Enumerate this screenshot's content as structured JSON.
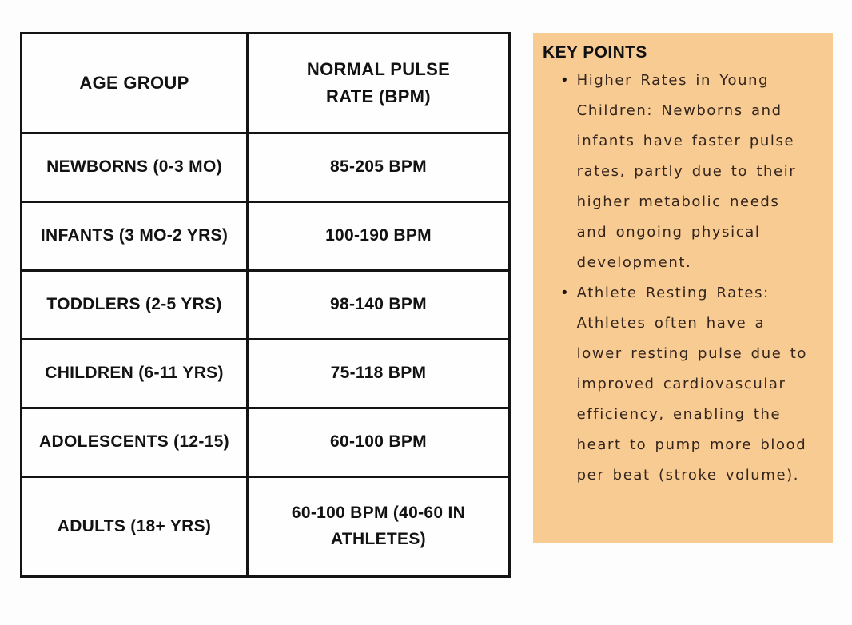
{
  "table": {
    "columns": {
      "age_group": "AGE GROUP",
      "pulse_rate": "NORMAL PULSE RATE (BPM)"
    },
    "rows": [
      {
        "age_group": "NEWBORNS (0-3 MO)",
        "pulse_rate": "85-205 BPM"
      },
      {
        "age_group": "INFANTS (3 MO-2 YRS)",
        "pulse_rate": "100-190 BPM"
      },
      {
        "age_group": "TODDLERS (2-5 YRS)",
        "pulse_rate": "98-140 BPM"
      },
      {
        "age_group": "CHILDREN (6-11 YRS)",
        "pulse_rate": "75-118 BPM"
      },
      {
        "age_group": "ADOLESCENTS (12-15)",
        "pulse_rate": "60-100 BPM"
      },
      {
        "age_group": "ADULTS (18+ YRS)",
        "pulse_rate": "60-100 BPM (40-60 IN ATHLETES)"
      }
    ]
  },
  "key_points": {
    "title": "KEY POINTS",
    "bullet_glyph": "•",
    "bullets": [
      "Higher Rates in Young Children: Newborns and infants have faster pulse rates, partly due to their higher metabolic needs and ongoing physical development.",
      "Athlete Resting Rates: Athletes often have a lower resting pulse due to improved cardiovascular efficiency, enabling the heart to pump more blood per beat (stroke volume)."
    ]
  },
  "colors": {
    "panel_background": "#f8cb92",
    "table_border": "#141414",
    "table_text": "#121212",
    "handwriting_text": "#33241c",
    "page_background": "#fdfdfd"
  }
}
